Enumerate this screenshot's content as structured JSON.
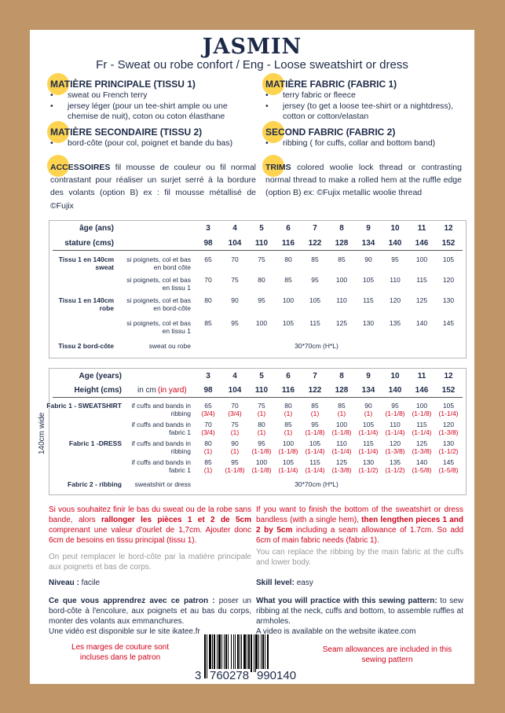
{
  "title": "JASMIN",
  "subtitle": "Fr - Sweat ou robe confort / Eng - Loose sweatshirt or dress",
  "colors": {
    "accent_dot": "#fdd34f",
    "text": "#1d2a47",
    "red": "#d0021b",
    "background": "#c09668"
  },
  "fr": {
    "main_title": "MATIÈRE PRINCIPALE (TISSU 1)",
    "main_items": [
      "sweat ou French terry",
      "jersey léger (pour un tee-shirt ample ou une chemise de nuit), coton ou coton élasthane"
    ],
    "second_title": "MATIÈRE SECONDAIRE (TISSU 2)",
    "second_items": [
      "bord-côte (pour col, poignet et bande du bas)"
    ],
    "acc_title": "ACCESSOIRES",
    "acc_text": " fil mousse de couleur ou fil normal contrastant pour réaliser un surjet serré à la bordure des volants (option B) ex : fil mousse métallisé de ©Fujix"
  },
  "en": {
    "main_title": "MATIÈRE FABRIC (FABRIC 1)",
    "main_items": [
      "terry fabric or fleece",
      "jersey (to get a loose tee-shirt or a nightdress), cotton or cotton/elastan"
    ],
    "second_title": "SECOND FABRIC (FABRIC 2)",
    "second_items": [
      "ribbing ( for cuffs, collar and bottom band)"
    ],
    "acc_title": "TRIMS",
    "acc_text": "  colored woolie lock thread or contrasting normal thread to make a rolled hem at the ruffle edge (option B) ex: ©Fujix metallic woolie thread"
  },
  "table_fr": {
    "age_label": "âge (ans)",
    "height_label": "stature (cms)",
    "ages": [
      "3",
      "4",
      "5",
      "6",
      "7",
      "8",
      "9",
      "10",
      "11",
      "12"
    ],
    "heights": [
      "98",
      "104",
      "110",
      "116",
      "122",
      "128",
      "134",
      "140",
      "146",
      "152"
    ],
    "rows": [
      {
        "group": "Tissu 1 en 140cm",
        "group2": "sweat",
        "desc": "si poignets, col et bas",
        "desc2": "en bord côte",
        "values": [
          "65",
          "70",
          "75",
          "80",
          "85",
          "85",
          "90",
          "95",
          "100",
          "105"
        ]
      },
      {
        "group": "",
        "group2": "",
        "desc": "si poignets, col et bas",
        "desc2": "en tissu 1",
        "values": [
          "70",
          "75",
          "80",
          "85",
          "95",
          "100",
          "105",
          "110",
          "115",
          "120"
        ]
      },
      {
        "group": "Tissu 1 en 140cm",
        "group2": "robe",
        "desc": "si poignets, col et bas",
        "desc2": "en bord-côte",
        "values": [
          "80",
          "90",
          "95",
          "100",
          "105",
          "110",
          "115",
          "120",
          "125",
          "130"
        ]
      },
      {
        "group": "",
        "group2": "",
        "desc": "si poignets, col et bas",
        "desc2": "en tissu 1",
        "values": [
          "85",
          "95",
          "100",
          "105",
          "115",
          "125",
          "130",
          "135",
          "140",
          "145"
        ]
      }
    ],
    "rib_group": "Tissu 2 bord-côte",
    "rib_desc": "sweat ou robe",
    "rib_value": "30*70cm (H*L)"
  },
  "table_en": {
    "side_label": "140cm wide",
    "age_label": "Age (years)",
    "height_label": "Height (cms)",
    "unit_label": "in cm",
    "unit_yard": "(in yard)",
    "ages": [
      "3",
      "4",
      "5",
      "6",
      "7",
      "8",
      "9",
      "10",
      "11",
      "12"
    ],
    "heights": [
      "98",
      "104",
      "110",
      "116",
      "122",
      "128",
      "134",
      "140",
      "146",
      "152"
    ],
    "rows": [
      {
        "group": "Fabric 1 - SWEATSHIRT",
        "desc": "if cuffs and bands in",
        "desc2": "ribbing",
        "values": [
          "65",
          "70",
          "75",
          "80",
          "85",
          "85",
          "90",
          "95",
          "100",
          "105"
        ],
        "yards": [
          "(3/4)",
          "(3/4)",
          "(1)",
          "(1)",
          "(1)",
          "(1)",
          "(1)",
          "(1-1/8)",
          "(1-1/8)",
          "(1-1/4)"
        ]
      },
      {
        "group": "",
        "desc": "if cuffs and bands in",
        "desc2": "fabric 1",
        "values": [
          "70",
          "75",
          "80",
          "85",
          "95",
          "100",
          "105",
          "110",
          "115",
          "120"
        ],
        "yards": [
          "(3/4)",
          "(1)",
          "(1)",
          "(1)",
          "(1-1/8)",
          "(1-1/8)",
          "(1-1/4)",
          "(1-1/4)",
          "(1-1/4)",
          "(1-3/8)"
        ]
      },
      {
        "group": "Fabric 1 -DRESS",
        "desc": "if cuffs and bands in",
        "desc2": "ribbing",
        "values": [
          "80",
          "90",
          "95",
          "100",
          "105",
          "110",
          "115",
          "120",
          "125",
          "130"
        ],
        "yards": [
          "(1)",
          "(1)",
          "(1-1/8)",
          "(1-1/8)",
          "(1-1/4)",
          "(1-1/4)",
          "(1-1/4)",
          "(1-3/8)",
          "(1-3/8)",
          "(1-1/2)"
        ]
      },
      {
        "group": "",
        "desc": "if cuffs and bands in",
        "desc2": "fabric 1",
        "values": [
          "85",
          "95",
          "100",
          "105",
          "115",
          "125",
          "130",
          "135",
          "140",
          "145"
        ],
        "yards": [
          "(1)",
          "(1-1/8)",
          "(1-1/8)",
          "(1-1/4)",
          "(1-1/4)",
          "(1-3/8)",
          "(1-1/2)",
          "(1-1/2)",
          "(1-5/8)",
          "(1-5/8)"
        ]
      }
    ],
    "rib_group": "Fabric 2 - ribbing",
    "rib_desc": "sweatshirt or dress",
    "rib_value": "30*70cm (H*L)"
  },
  "notes_fr": {
    "hem_a": "Si vous souhaitez finir le bas du sweat ou de la robe sans bande, alors ",
    "hem_b": "rallonger les pièces 1 et 2 de 5cm",
    "hem_c": " comprenant une valeur d'ourlet de 1,7cm. Ajouter donc 6cm de besoins en tissu principal (tissu 1).",
    "replace": "On peut remplacer le bord-côte par la matière principale aux poignets et bas de corps.",
    "level_label": "Niveau :",
    "level": " facile",
    "learn_label": "Ce que vous apprendrez avec ce patron :",
    "learn": " poser un bord-côte à l'encolure, aux poignets et au bas du corps, monter des volants aux emmanchures.",
    "video": "Une vidéo est disponible sur le site ikatee.fr",
    "seam": "Les marges de couture sont incluses dans le patron"
  },
  "notes_en": {
    "hem_a": "If you want to finish the bottom of the sweatshirt or dress bandless (with a single hem), ",
    "hem_b": "then lengthen pieces 1 and 2 by 5cm",
    "hem_c": " including a seam allowance of 1.7cm. So add 6cm of main fabric needs (fabric 1).",
    "replace": "You can replace the ribbing by the main fabric at the cuffs and lower body.",
    "level_label": "Skill level:",
    "level": " easy",
    "learn_label": "What you will practice with this sewing pattern:",
    "learn": " to sew ribbing at the neck, cuffs and bottom, to assemble ruffles at armholes.",
    "video": "A video is available on the website ikatee.com",
    "seam": "Seam allowances are included in this sewing pattern"
  },
  "barcode": {
    "first": "3",
    "left": "760278",
    "right": "990140"
  }
}
